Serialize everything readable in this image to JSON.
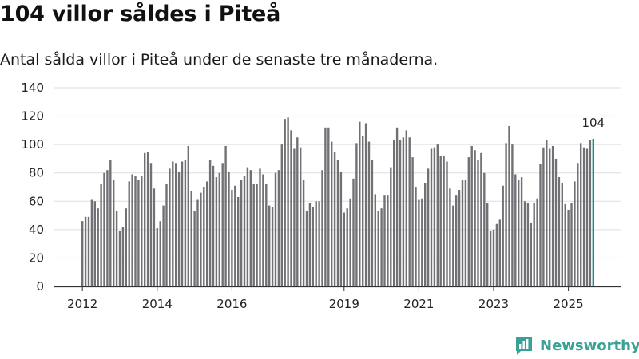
{
  "header": {
    "title": "104 villor såldes i Piteå",
    "subtitle": "Antal sålda villor i Piteå under de senaste tre månaderna."
  },
  "brand": {
    "name": "Newsworthy",
    "color": "#3aa197"
  },
  "colors": {
    "bar": "#717074",
    "highlight": "#13928a",
    "grid": "#dddddd",
    "axis": "#333333"
  },
  "chart_data": {
    "type": "bar",
    "title": "104 villor såldes i Piteå",
    "subtitle": "Antal sålda villor i Piteå under de senaste tre månaderna.",
    "xlabel": "",
    "ylabel": "",
    "ylim": [
      0,
      140
    ],
    "yticks": [
      0,
      20,
      40,
      60,
      80,
      100,
      120,
      140
    ],
    "grid": true,
    "legend": "none",
    "start": "2012-01",
    "frequency": "monthly",
    "xticks": [
      {
        "label": "2012",
        "index": 0
      },
      {
        "label": "2014",
        "index": 24
      },
      {
        "label": "2016",
        "index": 48
      },
      {
        "label": "2019",
        "index": 84
      },
      {
        "label": "2021",
        "index": 108
      },
      {
        "label": "2023",
        "index": 132
      },
      {
        "label": "2025",
        "index": 156
      }
    ],
    "values": [
      46,
      49,
      49,
      61,
      60,
      55,
      72,
      80,
      82,
      89,
      75,
      53,
      39,
      42,
      55,
      74,
      79,
      78,
      75,
      78,
      94,
      95,
      87,
      69,
      41,
      46,
      57,
      72,
      83,
      88,
      87,
      81,
      88,
      89,
      99,
      67,
      53,
      61,
      66,
      70,
      74,
      89,
      85,
      77,
      80,
      87,
      99,
      81,
      68,
      71,
      63,
      75,
      78,
      84,
      82,
      72,
      72,
      83,
      79,
      72,
      57,
      56,
      80,
      82,
      100,
      118,
      119,
      110,
      97,
      105,
      98,
      75,
      53,
      59,
      56,
      60,
      60,
      82,
      112,
      112,
      102,
      95,
      89,
      81,
      52,
      55,
      62,
      76,
      101,
      116,
      106,
      115,
      102,
      89,
      65,
      53,
      55,
      64,
      64,
      84,
      103,
      112,
      103,
      105,
      110,
      105,
      91,
      70,
      61,
      62,
      73,
      83,
      97,
      98,
      100,
      92,
      92,
      88,
      69,
      57,
      64,
      68,
      75,
      75,
      91,
      99,
      96,
      89,
      94,
      80,
      59,
      39,
      40,
      44,
      47,
      71,
      101,
      113,
      100,
      79,
      75,
      77,
      60,
      59,
      45,
      59,
      62,
      86,
      98,
      103,
      97,
      99,
      90,
      77,
      73,
      58,
      54,
      59,
      74,
      87,
      101,
      98,
      97,
      103,
      104
    ],
    "last_value_label": "104"
  }
}
